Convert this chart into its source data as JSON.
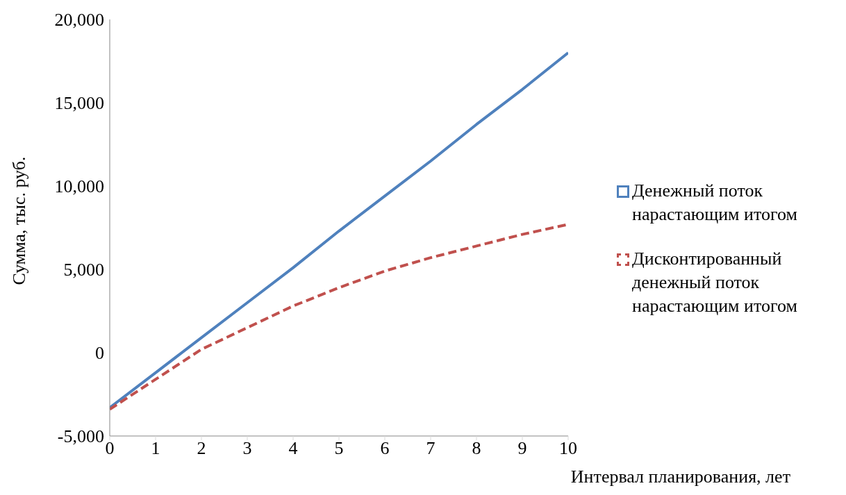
{
  "chart_data": {
    "type": "line",
    "xlabel": "Интервал планирования, лет",
    "ylabel": "Сумма, тыс. руб.",
    "x": [
      0,
      1,
      2,
      3,
      4,
      5,
      6,
      7,
      8,
      9,
      10
    ],
    "series": [
      {
        "name": "Денежный поток нарастающим итогом",
        "color": "#4f81bd",
        "line_style": "solid",
        "values": [
          -3300,
          -1200,
          900,
          3000,
          5100,
          7300,
          9400,
          11500,
          13700,
          15800,
          18000
        ]
      },
      {
        "name": "Дисконтированный денежный поток нарастающим итогом",
        "color": "#c0504d",
        "line_style": "dashed",
        "values": [
          -3400,
          -1600,
          200,
          1500,
          2800,
          3900,
          4900,
          5700,
          6400,
          7100,
          7700
        ]
      }
    ],
    "xlim": [
      0,
      10
    ],
    "xticks": [
      0,
      1,
      2,
      3,
      4,
      5,
      6,
      7,
      8,
      9,
      10
    ],
    "ylim": [
      -5000,
      20000
    ],
    "yticks": [
      {
        "value": -5000,
        "label": "-5,000"
      },
      0,
      {
        "value": 5000,
        "label": "5,000"
      },
      {
        "value": 10000,
        "label": "10,000"
      },
      {
        "value": 15000,
        "label": "15,000"
      },
      {
        "value": 20000,
        "label": "20,000"
      }
    ],
    "grid": false,
    "legend": "right",
    "marker": "none"
  }
}
